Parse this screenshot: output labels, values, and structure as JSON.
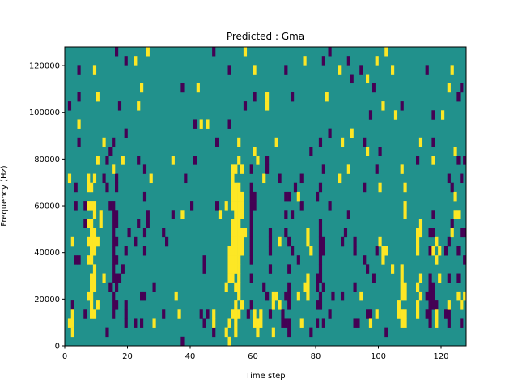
{
  "chart_data": {
    "type": "heatmap",
    "title": "Predicted : Gma",
    "xlabel": "Time step",
    "ylabel": "Frequency (Hz)",
    "xlim": [
      0,
      128
    ],
    "ylim": [
      0,
      128000
    ],
    "n_time_steps": 128,
    "n_freq_bins": 33,
    "x_ticks": [
      0,
      20,
      40,
      60,
      80,
      100,
      120
    ],
    "x_tick_labels": [
      "0",
      "20",
      "40",
      "60",
      "80",
      "100",
      "120"
    ],
    "y_ticks": [
      0,
      20000,
      40000,
      60000,
      80000,
      100000,
      120000
    ],
    "y_tick_labels": [
      "0",
      "20000",
      "40000",
      "60000",
      "80000",
      "100000",
      "120000"
    ],
    "colors": {
      "background": "#21918c",
      "low": "#440154",
      "high": "#fde725"
    },
    "levels": {
      "low": -1,
      "background": 0,
      "high": 1
    },
    "row_order": "top-to-bottom (highest frequency bin first)",
    "low_cells_by_row": [
      [
        16,
        47,
        84
      ],
      [
        19,
        82,
        90
      ],
      [
        4,
        52,
        70,
        94,
        115
      ],
      [
        91
      ],
      [
        37,
        98,
        126
      ],
      [
        4,
        60,
        72,
        125
      ],
      [
        1,
        17,
        57,
        107
      ],
      [
        97,
        117
      ],
      [
        41,
        52
      ],
      [
        19,
        84
      ],
      [
        4,
        15,
        48,
        81,
        95,
        117
      ],
      [
        14,
        78,
        100
      ],
      [
        13,
        23,
        41,
        64,
        112,
        125,
        127
      ],
      [
        25,
        59,
        64,
        82,
        99
      ],
      [
        12,
        16,
        38,
        68,
        75,
        122,
        126
      ],
      [
        3,
        13,
        16,
        59,
        73,
        81,
        95,
        123
      ],
      [
        25,
        59,
        60,
        70,
        71,
        80
      ],
      [
        3,
        6,
        14,
        15,
        40,
        48,
        59,
        60,
        75,
        84
      ],
      [
        15,
        16,
        26,
        34,
        59,
        70,
        72,
        90,
        117
      ],
      [
        6,
        15,
        16,
        23,
        26,
        59,
        81,
        123
      ],
      [
        15,
        20,
        25,
        31,
        59,
        65,
        70,
        81,
        89,
        116,
        117,
        126,
        127
      ],
      [
        15,
        16,
        22,
        32,
        59,
        65,
        71,
        81,
        82,
        88,
        92,
        122
      ],
      [
        15,
        19,
        25,
        59,
        65,
        72,
        81,
        82,
        92,
        99,
        116,
        121,
        125
      ],
      [
        3,
        4,
        15,
        16,
        44,
        59,
        74,
        81,
        95,
        127
      ],
      [
        15,
        18,
        44,
        65,
        71,
        81,
        96
      ],
      [
        15,
        16,
        17,
        59,
        80,
        81,
        98,
        116,
        122,
        125
      ],
      [
        14,
        16,
        28,
        63,
        71,
        80,
        82,
        92,
        116,
        117
      ],
      [
        15,
        24,
        25,
        64,
        70,
        71,
        81,
        85,
        88,
        115,
        116,
        117
      ],
      [
        2,
        15,
        16,
        19,
        59,
        71,
        80,
        81,
        116,
        117,
        118
      ],
      [
        6,
        15,
        19,
        31,
        43,
        45,
        58,
        65,
        69,
        84,
        96,
        97,
        115,
        116,
        121,
        122
      ],
      [
        19,
        22,
        24,
        44,
        69,
        70,
        71,
        80,
        82,
        92,
        93,
        116,
        122,
        126
      ],
      [
        13,
        47,
        71,
        78,
        102
      ],
      [
        37
      ]
    ],
    "high_cells_by_row": [
      [
        26,
        57,
        102
      ],
      [
        22,
        76,
        99
      ],
      [
        9,
        60,
        87,
        104,
        123
      ],
      [
        96
      ],
      [
        24,
        42,
        122
      ],
      [
        10,
        64,
        83
      ],
      [
        23,
        64,
        101
      ],
      [
        105,
        120
      ],
      [
        4,
        43,
        45
      ],
      [
        91
      ],
      [
        12,
        55,
        67,
        88,
        113
      ],
      [
        60,
        96,
        124
      ],
      [
        10,
        18,
        34,
        55,
        61,
        117
      ],
      [
        15,
        53,
        54,
        56,
        90,
        107
      ],
      [
        1,
        7,
        9,
        27,
        53,
        63,
        87
      ],
      [
        7,
        8,
        53,
        54,
        55,
        100,
        108
      ],
      [
        53,
        54,
        55,
        56,
        74,
        124
      ],
      [
        7,
        8,
        9,
        51,
        53,
        54,
        55,
        56,
        108
      ],
      [
        9,
        11,
        37,
        49,
        54,
        55,
        56,
        108,
        124,
        125
      ],
      [
        7,
        8,
        11,
        53,
        54,
        55,
        113
      ],
      [
        8,
        9,
        53,
        54,
        55,
        56,
        57,
        77,
        112,
        113,
        123
      ],
      [
        2,
        7,
        8,
        9,
        10,
        53,
        54,
        55,
        56,
        68,
        77,
        100,
        112,
        118
      ],
      [
        8,
        9,
        52,
        53,
        54,
        55,
        56,
        78,
        101,
        102,
        112,
        117,
        119
      ],
      [
        7,
        8,
        52,
        53,
        54,
        55,
        101,
        118
      ],
      [
        9,
        52,
        53,
        54,
        55,
        104,
        107
      ],
      [
        8,
        9,
        12,
        52,
        53,
        55,
        77,
        107,
        113,
        119
      ],
      [
        8,
        9,
        51,
        54,
        55,
        76,
        77,
        107,
        108,
        112
      ],
      [
        7,
        8,
        35,
        55,
        66,
        67,
        74,
        77,
        94,
        107,
        108,
        113,
        125,
        127
      ],
      [
        8,
        10,
        54,
        56,
        66,
        68,
        106,
        112,
        122,
        126
      ],
      [
        2,
        8,
        9,
        36,
        47,
        53,
        54,
        55,
        60,
        62,
        99,
        106,
        107,
        108,
        112,
        118
      ],
      [
        1,
        2,
        28,
        47,
        52,
        54,
        60,
        61,
        62,
        75,
        97,
        107,
        108,
        118
      ],
      [
        2,
        51,
        54,
        61,
        66
      ],
      [
        52
      ]
    ]
  }
}
